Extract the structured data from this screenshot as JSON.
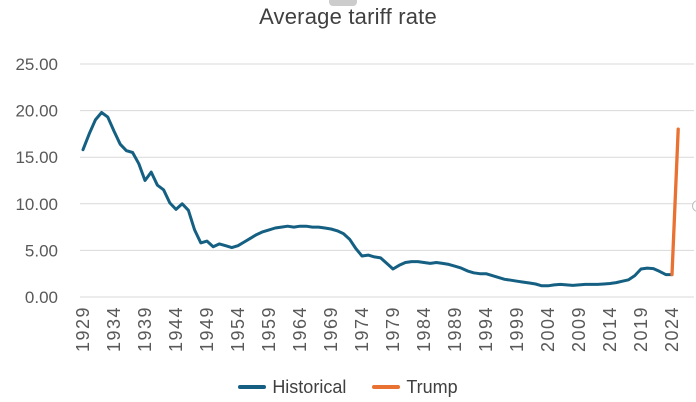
{
  "chart_data": {
    "type": "line",
    "title": "Average tariff rate",
    "xlabel": "",
    "ylabel": "",
    "ylim": [
      0,
      25
    ],
    "y_ticks": [
      0,
      5,
      10,
      15,
      20,
      25
    ],
    "y_tick_labels": [
      "0.00",
      "5.00",
      "10.00",
      "15.00",
      "20.00",
      "25.00"
    ],
    "x_ticks": [
      1929,
      1934,
      1939,
      1944,
      1949,
      1954,
      1959,
      1964,
      1969,
      1974,
      1979,
      1984,
      1989,
      1994,
      1999,
      2004,
      2009,
      2014,
      2019,
      2024
    ],
    "grid": "horizontal",
    "legend_position": "bottom-center",
    "series": [
      {
        "name": "Historical",
        "color": "#156082",
        "years": [
          1929,
          1930,
          1931,
          1932,
          1933,
          1934,
          1935,
          1936,
          1937,
          1938,
          1939,
          1940,
          1941,
          1942,
          1943,
          1944,
          1945,
          1946,
          1947,
          1948,
          1949,
          1950,
          1951,
          1952,
          1953,
          1954,
          1955,
          1956,
          1957,
          1958,
          1959,
          1960,
          1961,
          1962,
          1963,
          1964,
          1965,
          1966,
          1967,
          1968,
          1969,
          1970,
          1971,
          1972,
          1973,
          1974,
          1975,
          1976,
          1977,
          1978,
          1979,
          1980,
          1981,
          1982,
          1983,
          1984,
          1985,
          1986,
          1987,
          1988,
          1989,
          1990,
          1991,
          1992,
          1993,
          1994,
          1995,
          1996,
          1997,
          1998,
          1999,
          2000,
          2001,
          2002,
          2003,
          2004,
          2005,
          2006,
          2007,
          2008,
          2009,
          2010,
          2011,
          2012,
          2013,
          2014,
          2015,
          2016,
          2017,
          2018,
          2019,
          2020,
          2021,
          2022,
          2023,
          2024
        ],
        "values": [
          15.8,
          17.5,
          19.0,
          19.8,
          19.3,
          17.8,
          16.4,
          15.7,
          15.5,
          14.3,
          12.5,
          13.4,
          12.0,
          11.5,
          10.1,
          9.4,
          10.0,
          9.3,
          7.2,
          5.8,
          6.0,
          5.4,
          5.7,
          5.5,
          5.3,
          5.5,
          5.9,
          6.3,
          6.7,
          7.0,
          7.2,
          7.4,
          7.5,
          7.6,
          7.5,
          7.6,
          7.6,
          7.5,
          7.5,
          7.4,
          7.3,
          7.1,
          6.8,
          6.2,
          5.2,
          4.4,
          4.5,
          4.3,
          4.2,
          3.6,
          3.0,
          3.4,
          3.7,
          3.8,
          3.8,
          3.7,
          3.6,
          3.7,
          3.6,
          3.5,
          3.3,
          3.1,
          2.8,
          2.6,
          2.5,
          2.5,
          2.3,
          2.1,
          1.9,
          1.8,
          1.7,
          1.6,
          1.5,
          1.4,
          1.2,
          1.2,
          1.3,
          1.35,
          1.3,
          1.25,
          1.3,
          1.35,
          1.35,
          1.35,
          1.4,
          1.45,
          1.55,
          1.7,
          1.85,
          2.3,
          3.0,
          3.1,
          3.05,
          2.75,
          2.4,
          2.4
        ]
      },
      {
        "name": "Trump",
        "color": "#E97132",
        "years": [
          2024,
          2025
        ],
        "values": [
          2.4,
          18.0
        ]
      }
    ]
  },
  "colors": {
    "grid": "#D9D9D9",
    "axis_text": "#595959",
    "title_text": "#404040"
  }
}
